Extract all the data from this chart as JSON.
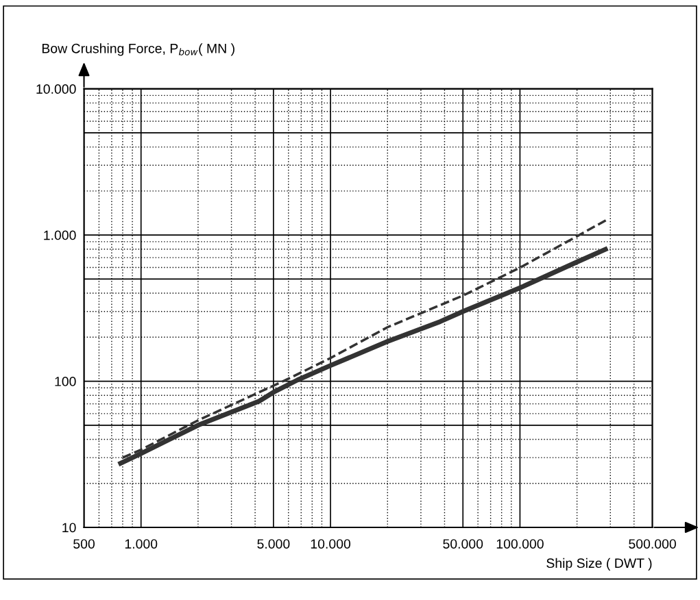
{
  "chart_data": {
    "type": "line",
    "xlabel": "Ship Size ( DWT )",
    "ylabel": "Bow Crushing Force, P$_{bow}$( MN )",
    "log": "xy",
    "grid": true,
    "marker": "none",
    "xlim": [
      500,
      500000
    ],
    "xticks": [
      500,
      {
        "value": 1000,
        "label": "1.000"
      },
      {
        "value": 5000,
        "label": "5.000"
      },
      {
        "value": 10000,
        "label": "10.000"
      },
      {
        "value": 50000,
        "label": "50.000"
      },
      {
        "value": 100000,
        "label": "100.000"
      },
      {
        "value": 500000,
        "label": "500.000"
      }
    ],
    "ylim": [
      10,
      10000
    ],
    "yticks": [
      10,
      {
        "value": 50,
        "label": null
      },
      100,
      {
        "value": 500,
        "label": null
      },
      {
        "value": 1000,
        "label": "1.000"
      },
      {
        "value": 5000,
        "label": null
      },
      {
        "value": 10000,
        "label": "10.000"
      }
    ],
    "series": [
      {
        "color": "#333333",
        "line_style": "solid",
        "x": [
          760,
          1000,
          2000,
          4200,
          5000,
          6700,
          10000,
          20000,
          38000,
          50000,
          100000,
          200000,
          290000
        ],
        "values": [
          27,
          32,
          50,
          73,
          84,
          102,
          128,
          187,
          256,
          300,
          435,
          654,
          810
        ]
      },
      {
        "color": "#333333",
        "line_style": "dashed",
        "x": [
          800,
          1000,
          2000,
          4200,
          6000,
          10000,
          20000,
          50000,
          100000,
          200000,
          290000
        ],
        "values": [
          30,
          34,
          54,
          84,
          104,
          144,
          234,
          385,
          598,
          980,
          1280
        ]
      }
    ]
  }
}
